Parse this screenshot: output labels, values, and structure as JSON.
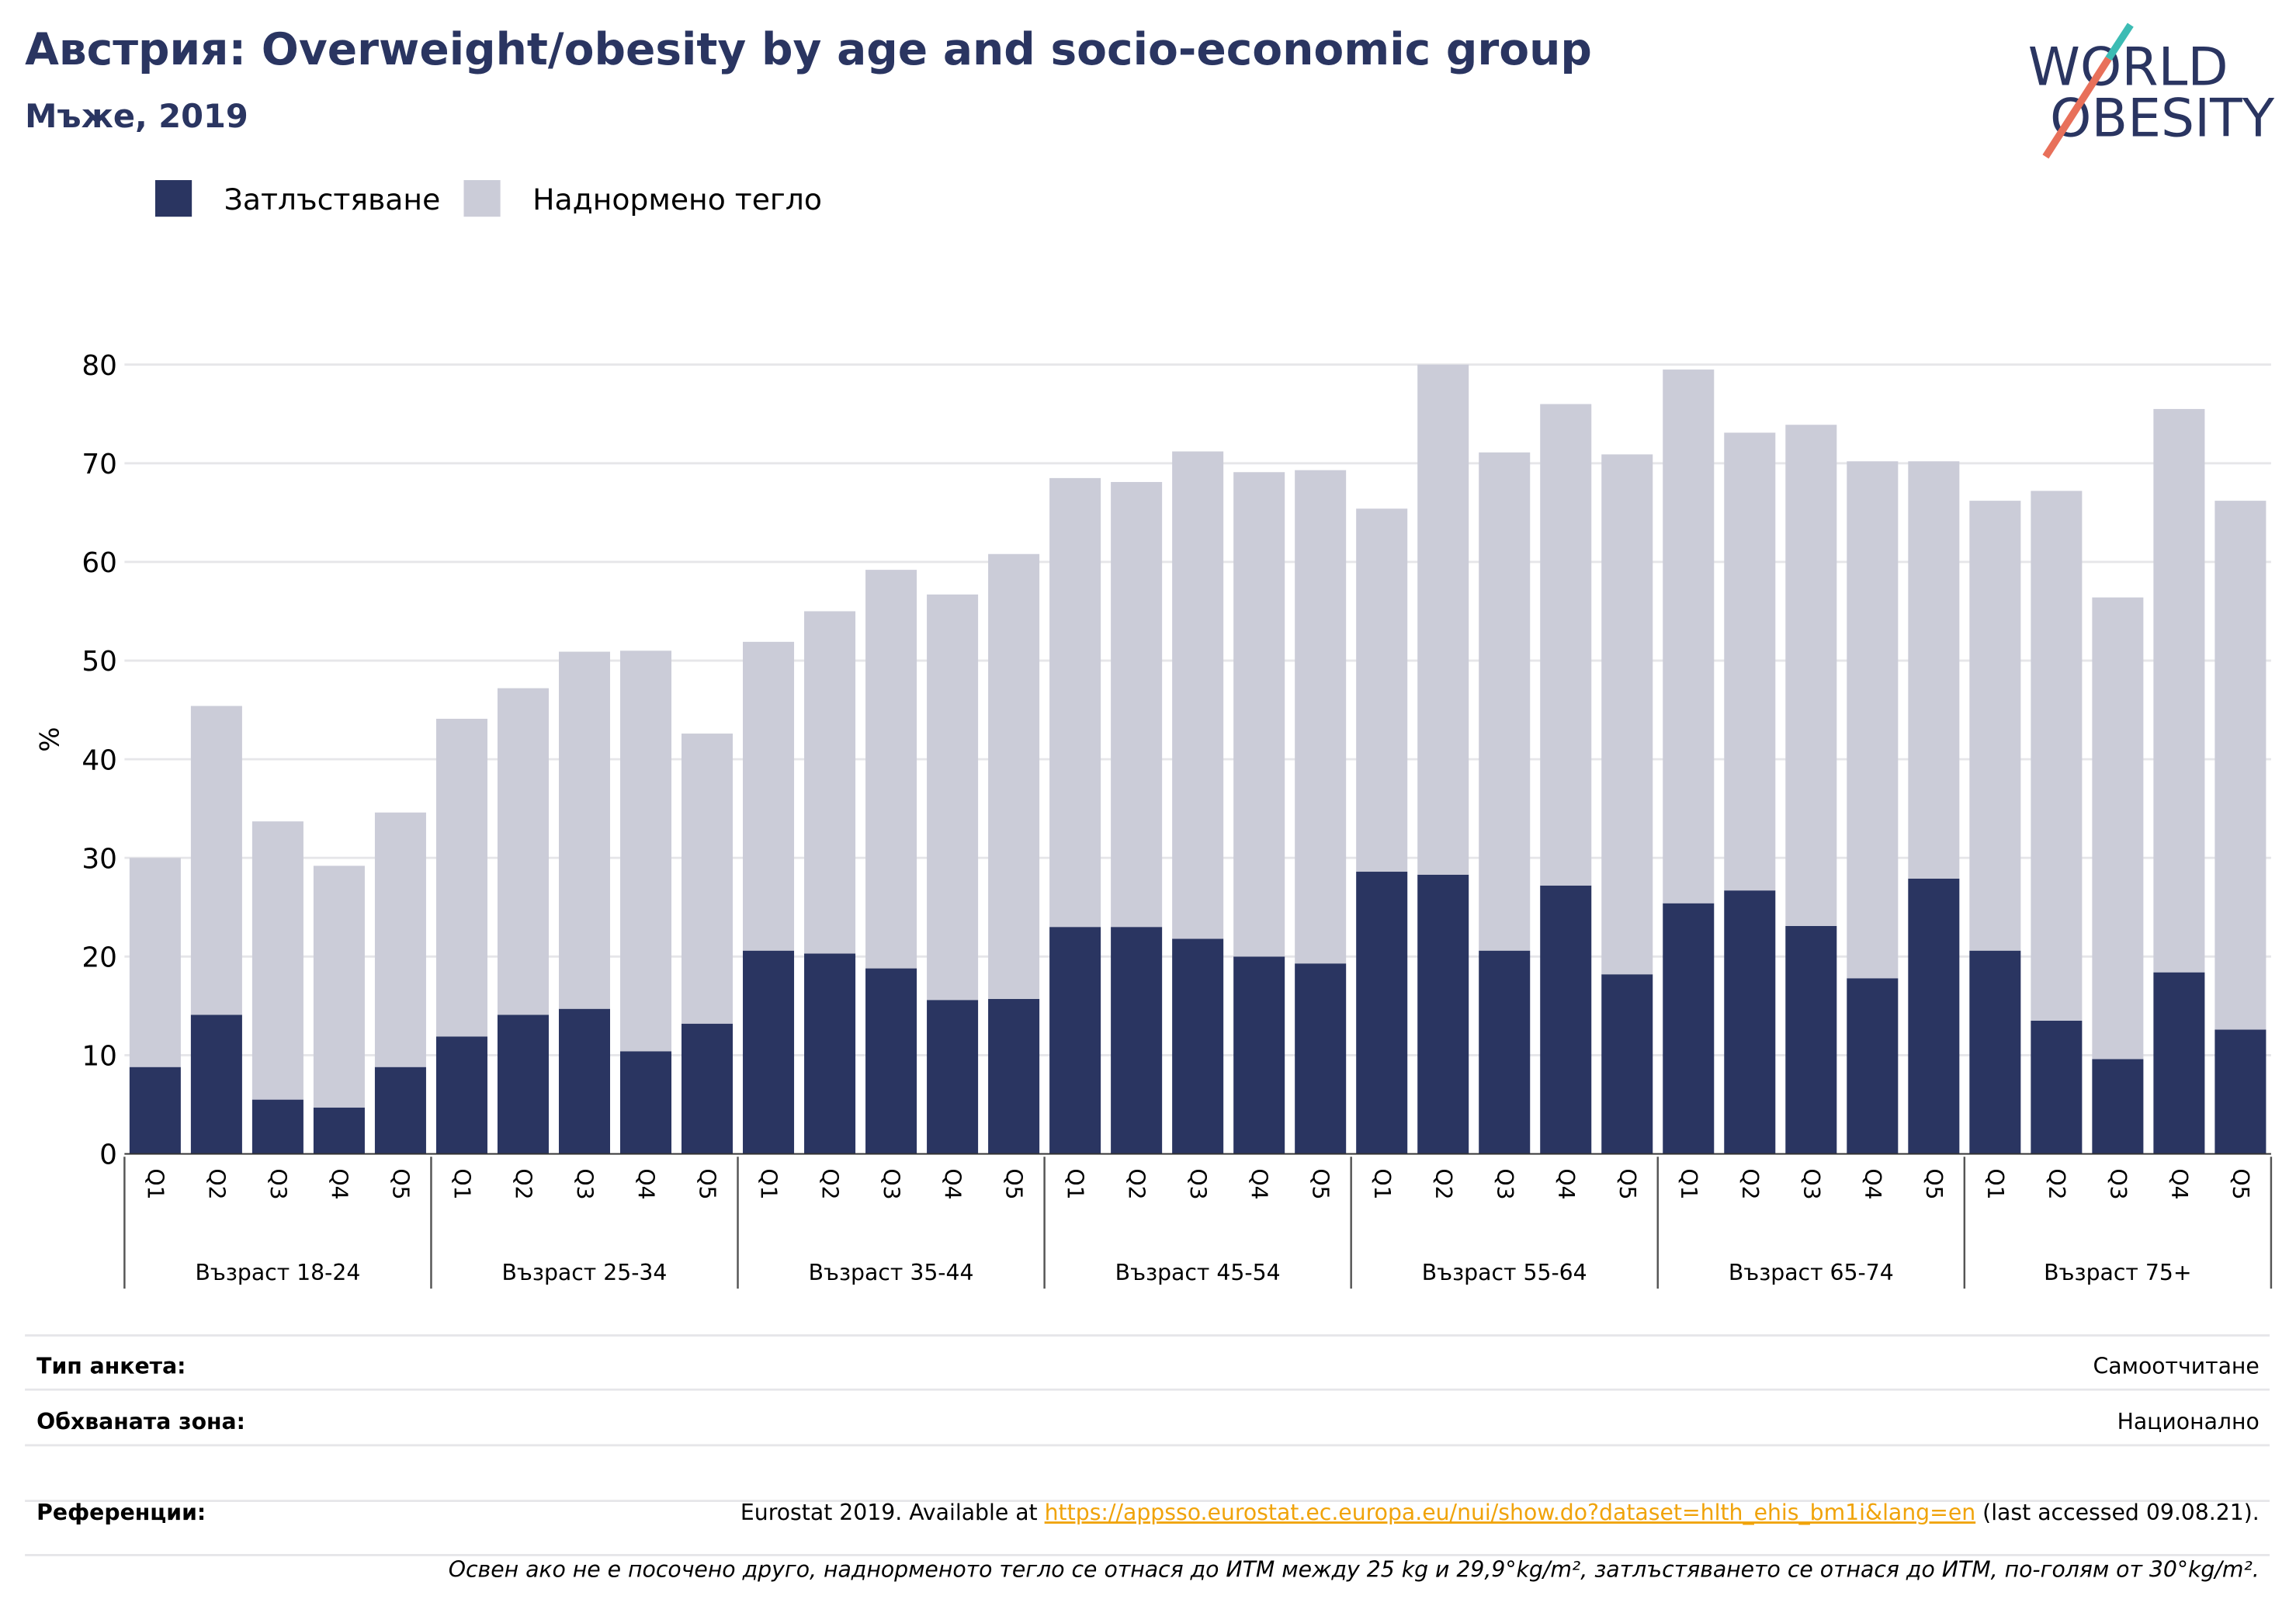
{
  "chart_data": {
    "type": "bar",
    "stacked": true,
    "title": "Австрия: Overweight/obesity by age and socio-economic group",
    "subtitle": "Мъже, 2019",
    "y_label": "%",
    "categories": [
      "Q1",
      "Q2",
      "Q3",
      "Q4",
      "Q5",
      "Q1",
      "Q2",
      "Q3",
      "Q4",
      "Q5",
      "Q1",
      "Q2",
      "Q3",
      "Q4",
      "Q5",
      "Q1",
      "Q2",
      "Q3",
      "Q4",
      "Q5",
      "Q1",
      "Q2",
      "Q3",
      "Q4",
      "Q5",
      "Q1",
      "Q2",
      "Q3",
      "Q4",
      "Q5",
      "Q1",
      "Q2",
      "Q3",
      "Q4",
      "Q5"
    ],
    "groups": [
      "Възраст 18-24",
      "Възраст 25-34",
      "Възраст 35-44",
      "Възраст 45-54",
      "Възраст 55-64",
      "Възраст 65-74",
      "Възраст 75+"
    ],
    "series": [
      {
        "name": "Затлъстяване",
        "color": "#2a3561",
        "values": [
          8.8,
          14.1,
          5.5,
          4.7,
          8.8,
          11.9,
          14.1,
          14.7,
          10.4,
          13.2,
          20.6,
          20.3,
          18.8,
          15.6,
          15.7,
          23.0,
          23.0,
          21.8,
          20.0,
          19.3,
          28.6,
          28.3,
          20.6,
          27.2,
          18.2,
          25.4,
          26.7,
          23.1,
          17.8,
          27.9,
          20.6,
          13.5,
          9.6,
          18.4,
          12.6
        ]
      },
      {
        "name": "Наднормено тегло",
        "color": "#cbccd8",
        "values": [
          21.2,
          31.3,
          28.2,
          24.5,
          25.8,
          32.2,
          33.1,
          36.2,
          40.6,
          29.4,
          31.3,
          34.7,
          40.4,
          41.1,
          45.1,
          45.5,
          45.1,
          49.4,
          49.1,
          50.0,
          36.8,
          51.7,
          50.5,
          48.8,
          52.7,
          54.1,
          46.4,
          50.8,
          52.4,
          42.3,
          45.6,
          53.7,
          46.8,
          57.1,
          53.6
        ]
      }
    ],
    "ylim": [
      0,
      80
    ],
    "yticks": [
      0,
      10,
      20,
      30,
      40,
      50,
      60,
      70,
      80
    ],
    "grid": true,
    "legend": "top-left"
  },
  "table": {
    "rows": [
      [
        "Тип анкета:",
        "Самоотчитане"
      ],
      [
        "Обхваната зона:",
        "Национално"
      ]
    ],
    "reference": {
      "label": "Референции:",
      "text": "Eurostat 2019. Available at ",
      "link": "https://appsso.eurostat.ec.europa.eu/nui/show.do?dataset=hlth_ehis_bm1i&lang=en",
      "after": " (last accessed 09.08.21)."
    },
    "note": "Освен ако не е посочено друго, наднорменото тегло се отнася до ИТМ между 25 kg и 29,9°kg/m², затлъстяването се отнася до ИТМ, по-голям от 30°kg/m²."
  },
  "logo": [
    "WORLD",
    "OBESITY"
  ]
}
